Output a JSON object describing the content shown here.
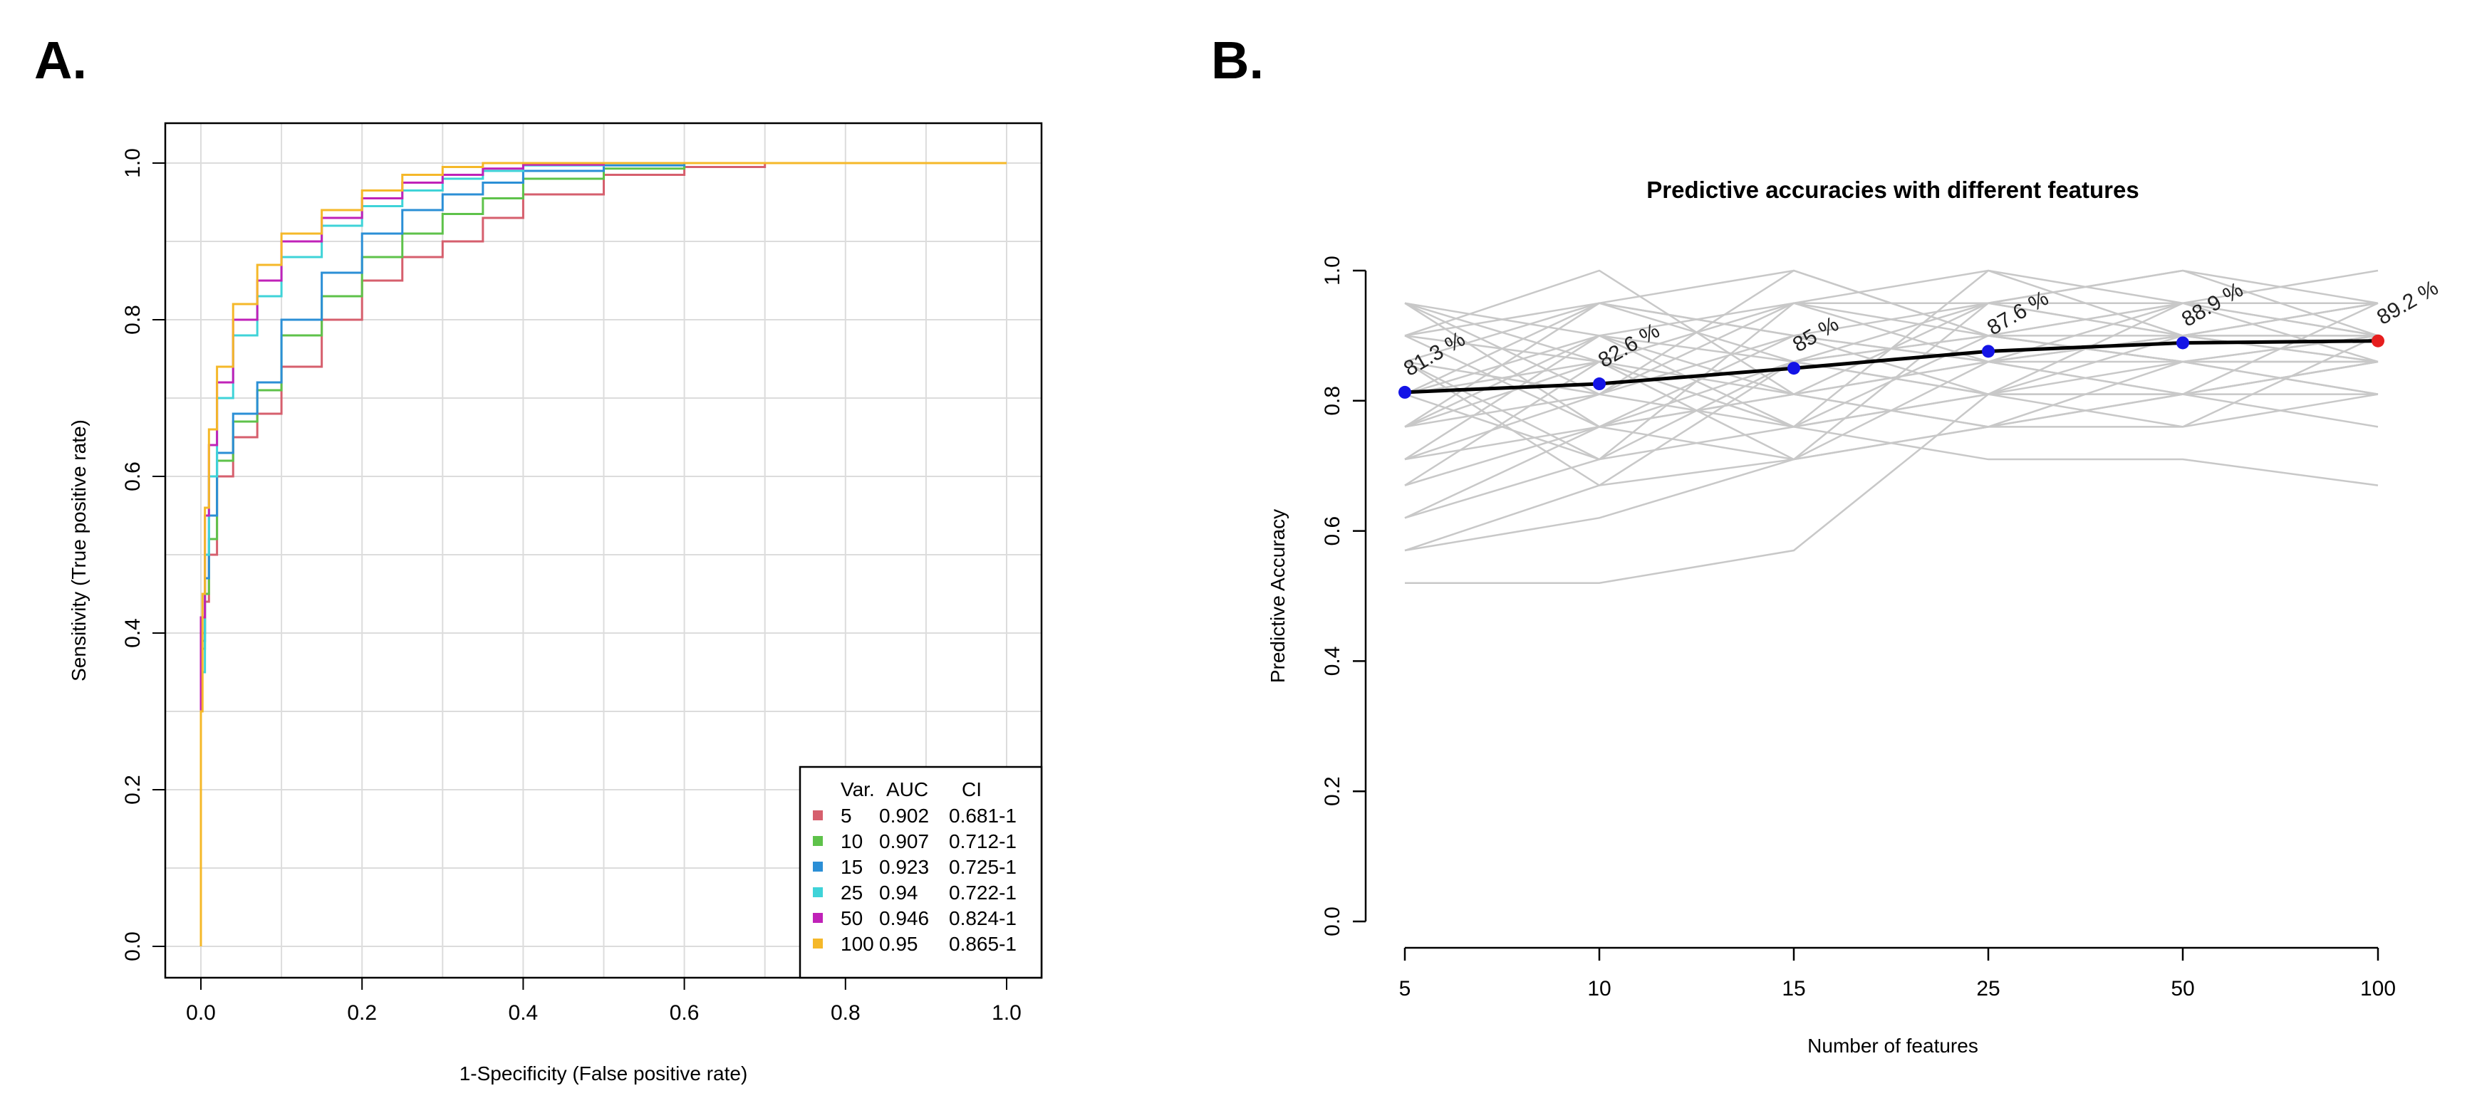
{
  "panels": {
    "a_label": "A.",
    "b_label": "B."
  },
  "chart_data": [
    {
      "type": "line",
      "panel": "A",
      "title": "",
      "xlabel": "1-Specificity (False positive rate)",
      "ylabel": "Sensitivity (True positive rate)",
      "xlim": [
        0,
        1
      ],
      "ylim": [
        0,
        1
      ],
      "xticks": [
        "0.0",
        "0.2",
        "0.4",
        "0.6",
        "0.8",
        "1.0"
      ],
      "yticks": [
        "0.0",
        "0.2",
        "0.4",
        "0.6",
        "0.8",
        "1.0"
      ],
      "grid": true,
      "legend": {
        "placement": "bottom-right",
        "header": {
          "var": "Var.",
          "auc": "AUC",
          "ci": "CI"
        },
        "entries": [
          {
            "var": "5",
            "auc": "0.902",
            "ci": "0.681-1"
          },
          {
            "var": "10",
            "auc": "0.907",
            "ci": "0.712-1"
          },
          {
            "var": "15",
            "auc": "0.923",
            "ci": "0.725-1"
          },
          {
            "var": "25",
            "auc": "0.94",
            "ci": "0.722-1"
          },
          {
            "var": "50",
            "auc": "0.946",
            "ci": "0.824-1"
          },
          {
            "var": "100",
            "auc": "0.95",
            "ci": "0.865-1"
          }
        ]
      },
      "series": [
        {
          "name": "5",
          "color": "#d65f6d",
          "points": [
            [
              0,
              0.14
            ],
            [
              0.005,
              0.4
            ],
            [
              0.01,
              0.44
            ],
            [
              0.02,
              0.5
            ],
            [
              0.04,
              0.6
            ],
            [
              0.07,
              0.65
            ],
            [
              0.1,
              0.68
            ],
            [
              0.15,
              0.74
            ],
            [
              0.2,
              0.8
            ],
            [
              0.25,
              0.85
            ],
            [
              0.3,
              0.88
            ],
            [
              0.35,
              0.9
            ],
            [
              0.4,
              0.93
            ],
            [
              0.5,
              0.96
            ],
            [
              0.6,
              0.985
            ],
            [
              0.7,
              0.995
            ],
            [
              0.8,
              1
            ],
            [
              1,
              1
            ]
          ]
        },
        {
          "name": "10",
          "color": "#5ec24a",
          "points": [
            [
              0,
              0.14
            ],
            [
              0.005,
              0.38
            ],
            [
              0.01,
              0.45
            ],
            [
              0.02,
              0.52
            ],
            [
              0.04,
              0.62
            ],
            [
              0.07,
              0.67
            ],
            [
              0.1,
              0.71
            ],
            [
              0.15,
              0.78
            ],
            [
              0.2,
              0.83
            ],
            [
              0.25,
              0.88
            ],
            [
              0.3,
              0.91
            ],
            [
              0.35,
              0.935
            ],
            [
              0.4,
              0.955
            ],
            [
              0.5,
              0.98
            ],
            [
              0.6,
              0.993
            ],
            [
              0.7,
              1
            ],
            [
              1,
              1
            ]
          ]
        },
        {
          "name": "15",
          "color": "#2b8fd6",
          "points": [
            [
              0,
              0.15
            ],
            [
              0.005,
              0.39
            ],
            [
              0.01,
              0.47
            ],
            [
              0.02,
              0.55
            ],
            [
              0.04,
              0.63
            ],
            [
              0.07,
              0.68
            ],
            [
              0.1,
              0.72
            ],
            [
              0.15,
              0.8
            ],
            [
              0.2,
              0.86
            ],
            [
              0.25,
              0.91
            ],
            [
              0.3,
              0.94
            ],
            [
              0.35,
              0.96
            ],
            [
              0.4,
              0.975
            ],
            [
              0.5,
              0.99
            ],
            [
              0.6,
              0.997
            ],
            [
              0.7,
              1
            ],
            [
              1,
              1
            ]
          ]
        },
        {
          "name": "25",
          "color": "#3fd3d8",
          "points": [
            [
              0,
              0.15
            ],
            [
              0.005,
              0.35
            ],
            [
              0.01,
              0.5
            ],
            [
              0.02,
              0.6
            ],
            [
              0.04,
              0.7
            ],
            [
              0.07,
              0.78
            ],
            [
              0.1,
              0.83
            ],
            [
              0.15,
              0.88
            ],
            [
              0.2,
              0.92
            ],
            [
              0.25,
              0.945
            ],
            [
              0.3,
              0.965
            ],
            [
              0.35,
              0.98
            ],
            [
              0.4,
              0.99
            ],
            [
              0.5,
              0.997
            ],
            [
              0.6,
              1
            ],
            [
              1,
              1
            ]
          ]
        },
        {
          "name": "50",
          "color": "#c022b8",
          "points": [
            [
              0,
              0.15
            ],
            [
              0.005,
              0.42
            ],
            [
              0.01,
              0.55
            ],
            [
              0.02,
              0.64
            ],
            [
              0.04,
              0.72
            ],
            [
              0.07,
              0.8
            ],
            [
              0.1,
              0.85
            ],
            [
              0.15,
              0.9
            ],
            [
              0.2,
              0.93
            ],
            [
              0.25,
              0.955
            ],
            [
              0.3,
              0.975
            ],
            [
              0.35,
              0.985
            ],
            [
              0.4,
              0.993
            ],
            [
              0.5,
              0.998
            ],
            [
              0.6,
              1
            ],
            [
              1,
              1
            ]
          ]
        },
        {
          "name": "100",
          "color": "#f5b829",
          "points": [
            [
              0,
              0
            ],
            [
              0.002,
              0.3
            ],
            [
              0.005,
              0.45
            ],
            [
              0.01,
              0.56
            ],
            [
              0.02,
              0.66
            ],
            [
              0.04,
              0.74
            ],
            [
              0.07,
              0.82
            ],
            [
              0.1,
              0.87
            ],
            [
              0.15,
              0.91
            ],
            [
              0.2,
              0.94
            ],
            [
              0.25,
              0.965
            ],
            [
              0.3,
              0.985
            ],
            [
              0.35,
              0.995
            ],
            [
              0.4,
              1
            ],
            [
              1,
              1
            ]
          ]
        }
      ]
    },
    {
      "type": "line",
      "panel": "B",
      "title": "Predictive accuracies with different features",
      "xlabel": "Number of features",
      "ylabel": "Predictive Accuracy",
      "categories": [
        "5",
        "10",
        "15",
        "25",
        "50",
        "100"
      ],
      "ylim": [
        0,
        1
      ],
      "yticks": [
        "0.0",
        "0.2",
        "0.4",
        "0.6",
        "0.8",
        "1.0"
      ],
      "mean_series": {
        "name": "mean",
        "values": [
          0.813,
          0.826,
          0.85,
          0.876,
          0.889,
          0.892
        ],
        "labels": [
          "81.3 %",
          "82.6 %",
          "85 %",
          "87.6 %",
          "88.9 %",
          "89.2 %"
        ],
        "point_color": "#1414e6",
        "best_point_color": "#e61e1e",
        "line_color": "#000000"
      },
      "background_color": "#c8c8c8",
      "background_series": [
        [
          0.52,
          0.52,
          0.57,
          0.81,
          0.81,
          0.76
        ],
        [
          0.57,
          0.62,
          0.71,
          0.76,
          0.76,
          0.81
        ],
        [
          0.62,
          0.71,
          0.76,
          0.71,
          0.71,
          0.67
        ],
        [
          0.67,
          0.76,
          0.81,
          0.86,
          0.86,
          0.86
        ],
        [
          0.71,
          0.81,
          0.76,
          0.81,
          0.81,
          0.86
        ],
        [
          0.76,
          0.86,
          0.71,
          0.95,
          0.95,
          0.9
        ],
        [
          0.81,
          0.71,
          0.86,
          0.9,
          0.9,
          0.95
        ],
        [
          0.86,
          0.95,
          0.9,
          0.86,
          0.81,
          0.86
        ],
        [
          0.9,
          1.0,
          0.81,
          0.95,
          1.0,
          0.9
        ],
        [
          0.95,
          0.9,
          0.95,
          1.0,
          0.95,
          0.95
        ],
        [
          0.95,
          0.81,
          1.0,
          0.9,
          0.86,
          0.81
        ],
        [
          0.86,
          0.67,
          0.71,
          0.76,
          0.81,
          0.86
        ],
        [
          0.81,
          0.9,
          0.86,
          0.81,
          0.9,
          0.95
        ],
        [
          0.76,
          0.95,
          0.9,
          0.95,
          0.9,
          0.9
        ],
        [
          0.71,
          0.76,
          0.81,
          0.86,
          0.95,
          1.0
        ],
        [
          0.9,
          0.86,
          0.95,
          0.9,
          0.86,
          0.9
        ],
        [
          0.62,
          0.76,
          0.86,
          0.95,
          0.9,
          0.86
        ],
        [
          0.67,
          0.86,
          0.76,
          0.81,
          0.86,
          0.9
        ],
        [
          0.76,
          0.81,
          0.9,
          0.86,
          0.9,
          0.95
        ],
        [
          0.81,
          0.95,
          0.86,
          0.9,
          0.95,
          0.9
        ],
        [
          0.95,
          0.86,
          0.81,
          0.76,
          0.86,
          0.81
        ],
        [
          0.86,
          0.71,
          0.95,
          0.86,
          0.81,
          0.95
        ],
        [
          0.71,
          0.9,
          0.76,
          0.9,
          0.86,
          0.86
        ],
        [
          0.9,
          0.76,
          0.71,
          0.86,
          0.9,
          0.9
        ],
        [
          0.57,
          0.67,
          0.86,
          0.81,
          0.95,
          0.95
        ],
        [
          0.81,
          0.86,
          0.76,
          1.0,
          0.9,
          0.86
        ],
        [
          0.95,
          0.76,
          0.9,
          0.81,
          0.76,
          0.9
        ],
        [
          0.86,
          0.81,
          0.95,
          0.95,
          1.0,
          0.95
        ],
        [
          0.76,
          0.9,
          0.81,
          0.76,
          0.81,
          0.81
        ],
        [
          0.9,
          0.95,
          1.0,
          0.9,
          0.95,
          0.86
        ]
      ]
    }
  ]
}
